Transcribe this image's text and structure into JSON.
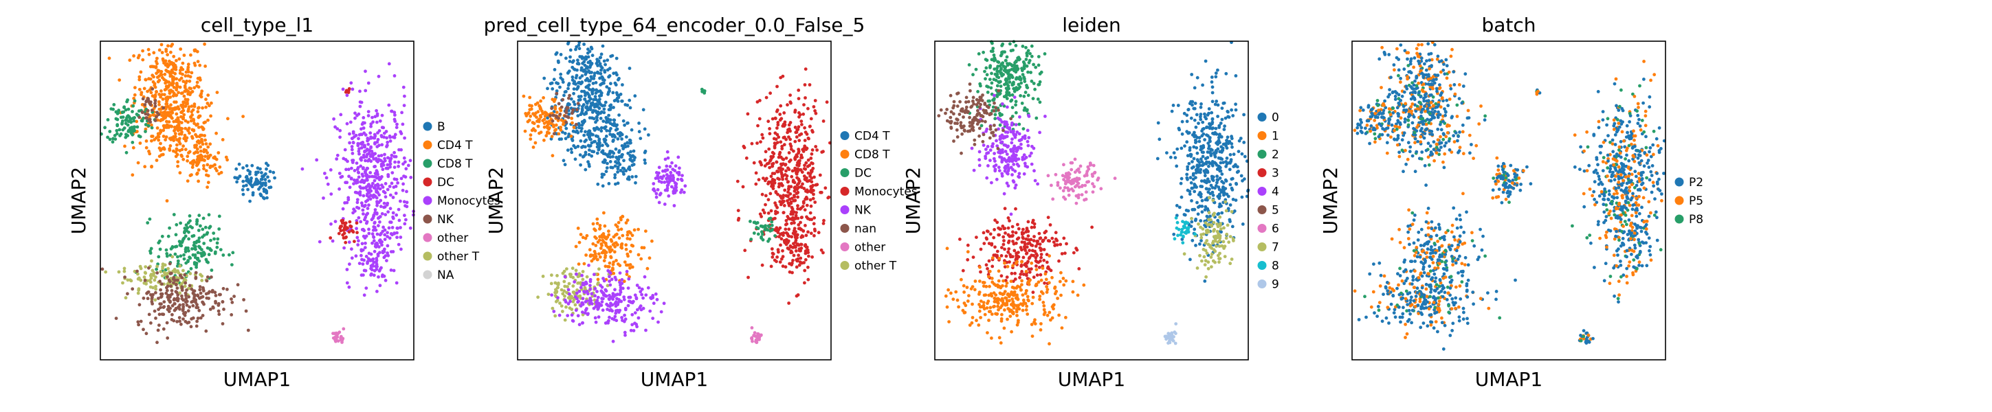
{
  "chart_data": [
    {
      "type": "scatter",
      "title": "cell_type_l1",
      "xlabel": "UMAP1",
      "ylabel": "UMAP2",
      "grid": false,
      "legend_position": "right",
      "legend": [
        {
          "label": "B",
          "color": "#1f77b4"
        },
        {
          "label": "CD4 T",
          "color": "#ff7f0e"
        },
        {
          "label": "CD8 T",
          "color": "#279e68"
        },
        {
          "label": "DC",
          "color": "#d62728"
        },
        {
          "label": "Monocytes",
          "color": "#aa40fc"
        },
        {
          "label": "NK",
          "color": "#8c564b"
        },
        {
          "label": "other",
          "color": "#e377c2"
        },
        {
          "label": "other T",
          "color": "#b5bd61"
        },
        {
          "label": "NA",
          "color": "#d3d3d3"
        }
      ],
      "clusters": [
        {
          "category": "CD4 T",
          "x": 2.2,
          "y": 8.6,
          "sx": 0.55,
          "sy": 0.75,
          "n": 320
        },
        {
          "category": "CD4 T",
          "x": 2.5,
          "y": 7.2,
          "sx": 0.65,
          "sy": 0.55,
          "n": 220
        },
        {
          "category": "CD4 T",
          "x": 3.2,
          "y": 6.2,
          "sx": 0.35,
          "sy": 0.35,
          "n": 80
        },
        {
          "category": "CD8 T",
          "x": 0.9,
          "y": 7.5,
          "sx": 0.35,
          "sy": 0.35,
          "n": 110
        },
        {
          "category": "NK",
          "x": 1.5,
          "y": 7.8,
          "sx": 0.25,
          "sy": 0.3,
          "n": 30
        },
        {
          "category": "B",
          "x": 4.9,
          "y": 5.6,
          "sx": 0.28,
          "sy": 0.28,
          "n": 90
        },
        {
          "category": "DC",
          "x": 7.9,
          "y": 8.4,
          "sx": 0.05,
          "sy": 0.05,
          "n": 6
        },
        {
          "category": "Monocytes",
          "x": 8.7,
          "y": 5.8,
          "sx": 0.6,
          "sy": 1.2,
          "n": 480
        },
        {
          "category": "Monocytes",
          "x": 8.8,
          "y": 3.6,
          "sx": 0.35,
          "sy": 0.65,
          "n": 120
        },
        {
          "category": "DC",
          "x": 7.8,
          "y": 4.1,
          "sx": 0.18,
          "sy": 0.18,
          "n": 35
        },
        {
          "category": "CD8 T",
          "x": 2.8,
          "y": 3.5,
          "sx": 0.5,
          "sy": 0.5,
          "n": 160
        },
        {
          "category": "other T",
          "x": 2.0,
          "y": 2.6,
          "sx": 0.7,
          "sy": 0.3,
          "n": 110
        },
        {
          "category": "NK",
          "x": 2.6,
          "y": 1.9,
          "sx": 0.75,
          "sy": 0.45,
          "n": 230
        },
        {
          "category": "other",
          "x": 7.6,
          "y": 0.7,
          "sx": 0.1,
          "sy": 0.1,
          "n": 25
        }
      ],
      "xlim": [
        0,
        10
      ],
      "ylim": [
        0,
        10
      ]
    },
    {
      "type": "scatter",
      "title": "pred_cell_type_64_encoder_0.0_False_5",
      "xlabel": "UMAP1",
      "ylabel": "UMAP2",
      "grid": false,
      "legend_position": "right",
      "legend": [
        {
          "label": "CD4 T",
          "color": "#1f77b4"
        },
        {
          "label": "CD8 T",
          "color": "#ff7f0e"
        },
        {
          "label": "DC",
          "color": "#279e68"
        },
        {
          "label": "Monocytes",
          "color": "#d62728"
        },
        {
          "label": "NK",
          "color": "#aa40fc"
        },
        {
          "label": "nan",
          "color": "#8c564b"
        },
        {
          "label": "other",
          "color": "#e377c2"
        },
        {
          "label": "other T",
          "color": "#b5bd61"
        }
      ],
      "clusters": [
        {
          "category": "CD4 T",
          "x": 2.2,
          "y": 8.6,
          "sx": 0.55,
          "sy": 0.75,
          "n": 320
        },
        {
          "category": "CD4 T",
          "x": 2.5,
          "y": 7.2,
          "sx": 0.65,
          "sy": 0.55,
          "n": 220
        },
        {
          "category": "CD4 T",
          "x": 3.2,
          "y": 6.2,
          "sx": 0.35,
          "sy": 0.35,
          "n": 80
        },
        {
          "category": "CD8 T",
          "x": 0.9,
          "y": 7.5,
          "sx": 0.35,
          "sy": 0.35,
          "n": 110
        },
        {
          "category": "nan",
          "x": 1.5,
          "y": 7.8,
          "sx": 0.25,
          "sy": 0.3,
          "n": 30
        },
        {
          "category": "NK",
          "x": 4.9,
          "y": 5.6,
          "sx": 0.28,
          "sy": 0.28,
          "n": 90
        },
        {
          "category": "DC",
          "x": 5.9,
          "y": 8.4,
          "sx": 0.05,
          "sy": 0.05,
          "n": 6
        },
        {
          "category": "Monocytes",
          "x": 8.7,
          "y": 5.8,
          "sx": 0.6,
          "sy": 1.2,
          "n": 480
        },
        {
          "category": "Monocytes",
          "x": 8.8,
          "y": 3.6,
          "sx": 0.35,
          "sy": 0.65,
          "n": 120
        },
        {
          "category": "DC",
          "x": 7.8,
          "y": 4.1,
          "sx": 0.18,
          "sy": 0.18,
          "n": 35
        },
        {
          "category": "CD8 T",
          "x": 3.0,
          "y": 3.5,
          "sx": 0.5,
          "sy": 0.45,
          "n": 160
        },
        {
          "category": "other T",
          "x": 1.8,
          "y": 2.2,
          "sx": 0.45,
          "sy": 0.35,
          "n": 110
        },
        {
          "category": "NK",
          "x": 2.9,
          "y": 1.9,
          "sx": 0.75,
          "sy": 0.45,
          "n": 230
        },
        {
          "category": "other",
          "x": 7.6,
          "y": 0.7,
          "sx": 0.1,
          "sy": 0.1,
          "n": 25
        }
      ],
      "xlim": [
        0,
        10
      ],
      "ylim": [
        0,
        10
      ]
    },
    {
      "type": "scatter",
      "title": "leiden",
      "xlabel": "UMAP1",
      "ylabel": "UMAP2",
      "grid": false,
      "legend_position": "right",
      "legend": [
        {
          "label": "0",
          "color": "#1f77b4"
        },
        {
          "label": "1",
          "color": "#ff7f0e"
        },
        {
          "label": "2",
          "color": "#279e68"
        },
        {
          "label": "3",
          "color": "#d62728"
        },
        {
          "label": "4",
          "color": "#aa40fc"
        },
        {
          "label": "5",
          "color": "#8c564b"
        },
        {
          "label": "6",
          "color": "#e377c2"
        },
        {
          "label": "7",
          "color": "#b5bd61"
        },
        {
          "label": "8",
          "color": "#17becf"
        },
        {
          "label": "9",
          "color": "#aec7e8"
        }
      ],
      "clusters": [
        {
          "category": "2",
          "x": 2.3,
          "y": 8.8,
          "sx": 0.5,
          "sy": 0.6,
          "n": 280
        },
        {
          "category": "4",
          "x": 2.4,
          "y": 6.6,
          "sx": 0.45,
          "sy": 0.6,
          "n": 200
        },
        {
          "category": "5",
          "x": 1.2,
          "y": 7.6,
          "sx": 0.45,
          "sy": 0.4,
          "n": 140
        },
        {
          "category": "6",
          "x": 4.5,
          "y": 5.6,
          "sx": 0.35,
          "sy": 0.28,
          "n": 100
        },
        {
          "category": "0",
          "x": 8.8,
          "y": 6.0,
          "sx": 0.55,
          "sy": 1.2,
          "n": 480
        },
        {
          "category": "7",
          "x": 8.9,
          "y": 3.8,
          "sx": 0.3,
          "sy": 0.5,
          "n": 100
        },
        {
          "category": "8",
          "x": 7.9,
          "y": 4.1,
          "sx": 0.18,
          "sy": 0.15,
          "n": 30
        },
        {
          "category": "3",
          "x": 2.7,
          "y": 3.5,
          "sx": 0.7,
          "sy": 0.55,
          "n": 240
        },
        {
          "category": "1",
          "x": 2.4,
          "y": 1.9,
          "sx": 0.85,
          "sy": 0.5,
          "n": 280
        },
        {
          "category": "9",
          "x": 7.5,
          "y": 0.7,
          "sx": 0.1,
          "sy": 0.1,
          "n": 25
        }
      ],
      "xlim": [
        0,
        10
      ],
      "ylim": [
        0,
        10
      ]
    },
    {
      "type": "scatter",
      "title": "batch",
      "xlabel": "UMAP1",
      "ylabel": "UMAP2",
      "grid": false,
      "legend_position": "right",
      "legend": [
        {
          "label": "P2",
          "color": "#1f77b4"
        },
        {
          "label": "P5",
          "color": "#ff7f0e"
        },
        {
          "label": "P8",
          "color": "#279e68"
        }
      ],
      "batch_mix": [
        0.62,
        0.28,
        0.1
      ],
      "clusters": [
        {
          "x": 2.2,
          "y": 8.6,
          "sx": 0.55,
          "sy": 0.75,
          "n": 300
        },
        {
          "x": 2.5,
          "y": 7.2,
          "sx": 0.65,
          "sy": 0.55,
          "n": 220
        },
        {
          "x": 0.9,
          "y": 7.5,
          "sx": 0.35,
          "sy": 0.35,
          "n": 120
        },
        {
          "x": 4.9,
          "y": 5.6,
          "sx": 0.28,
          "sy": 0.28,
          "n": 90
        },
        {
          "x": 5.9,
          "y": 8.4,
          "sx": 0.05,
          "sy": 0.05,
          "n": 6
        },
        {
          "x": 8.7,
          "y": 5.8,
          "sx": 0.6,
          "sy": 1.2,
          "n": 480
        },
        {
          "x": 8.8,
          "y": 3.6,
          "sx": 0.35,
          "sy": 0.65,
          "n": 120
        },
        {
          "x": 2.7,
          "y": 3.4,
          "sx": 0.6,
          "sy": 0.55,
          "n": 220
        },
        {
          "x": 2.4,
          "y": 1.9,
          "sx": 0.85,
          "sy": 0.5,
          "n": 280
        },
        {
          "x": 7.5,
          "y": 0.7,
          "sx": 0.1,
          "sy": 0.1,
          "n": 25
        }
      ],
      "xlim": [
        0,
        10
      ],
      "ylim": [
        0,
        10
      ]
    }
  ]
}
